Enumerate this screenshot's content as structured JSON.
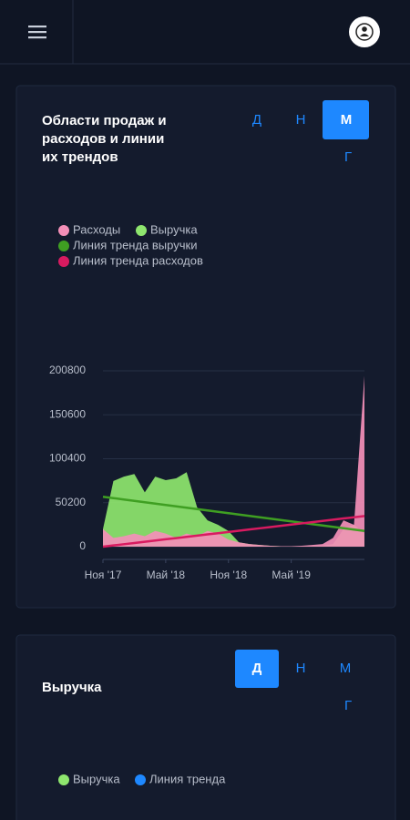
{
  "chart_data": {
    "type": "area",
    "title": "Области продаж и расходов и линии их трендов",
    "categories": [
      "Ноя '17",
      null,
      null,
      null,
      null,
      null,
      "Май '18",
      null,
      null,
      null,
      null,
      null,
      "Ноя '18",
      null,
      null,
      null,
      null,
      null,
      "Май '19",
      null,
      null,
      null,
      null,
      null,
      null,
      null
    ],
    "series": [
      {
        "name": "Расходы",
        "color": "#f48fb8",
        "kind": "area",
        "values": [
          20000,
          10000,
          12000,
          15000,
          12000,
          18000,
          15000,
          10000,
          15000,
          12000,
          18000,
          15000,
          8000,
          5000,
          3000,
          2000,
          1000,
          500,
          500,
          1000,
          2000,
          3000,
          10000,
          30000,
          25000,
          195000
        ]
      },
      {
        "name": "Выручка",
        "color": "#8ee66e",
        "kind": "area",
        "values": [
          20000,
          75000,
          80000,
          83000,
          62000,
          80000,
          76000,
          78000,
          85000,
          45000,
          30000,
          25000,
          18000,
          5000,
          3000,
          2000,
          1000,
          500,
          500,
          500,
          1000,
          1000,
          3000,
          20000,
          25000,
          15000
        ]
      },
      {
        "name": "Линия тренда выручки",
        "color": "#3f9f22",
        "kind": "line",
        "values": [
          57000,
          55440,
          53880,
          52320,
          50760,
          49200,
          47640,
          46080,
          44520,
          42960,
          41400,
          39840,
          38280,
          36720,
          35160,
          33600,
          32040,
          30480,
          28920,
          27360,
          25800,
          24240,
          22680,
          21120,
          19560,
          18000
        ]
      },
      {
        "name": "Линия тренда расходов",
        "color": "#d81b60",
        "kind": "line",
        "values": [
          0,
          1400,
          2800,
          4200,
          5600,
          7000,
          8400,
          9800,
          11200,
          12600,
          14000,
          15400,
          16800,
          18200,
          19600,
          21000,
          22400,
          23800,
          25200,
          26600,
          28000,
          29400,
          30800,
          32200,
          33600,
          35000
        ]
      }
    ],
    "ylim": [
      0,
      200800
    ],
    "yticks": [
      0,
      50200,
      100400,
      150600,
      200800
    ],
    "grid": true
  },
  "period_buttons": [
    "Д",
    "Н",
    "М",
    "Г"
  ],
  "active_period": 2,
  "revenue_card": {
    "title": "Выручка",
    "period_buttons": [
      "Д",
      "Н",
      "М",
      "Г"
    ],
    "active_period": 0,
    "legend": [
      {
        "name": "Выручка",
        "color": "#8ee66e"
      },
      {
        "name": "Линия тренда",
        "color": "#1e88ff"
      }
    ]
  }
}
